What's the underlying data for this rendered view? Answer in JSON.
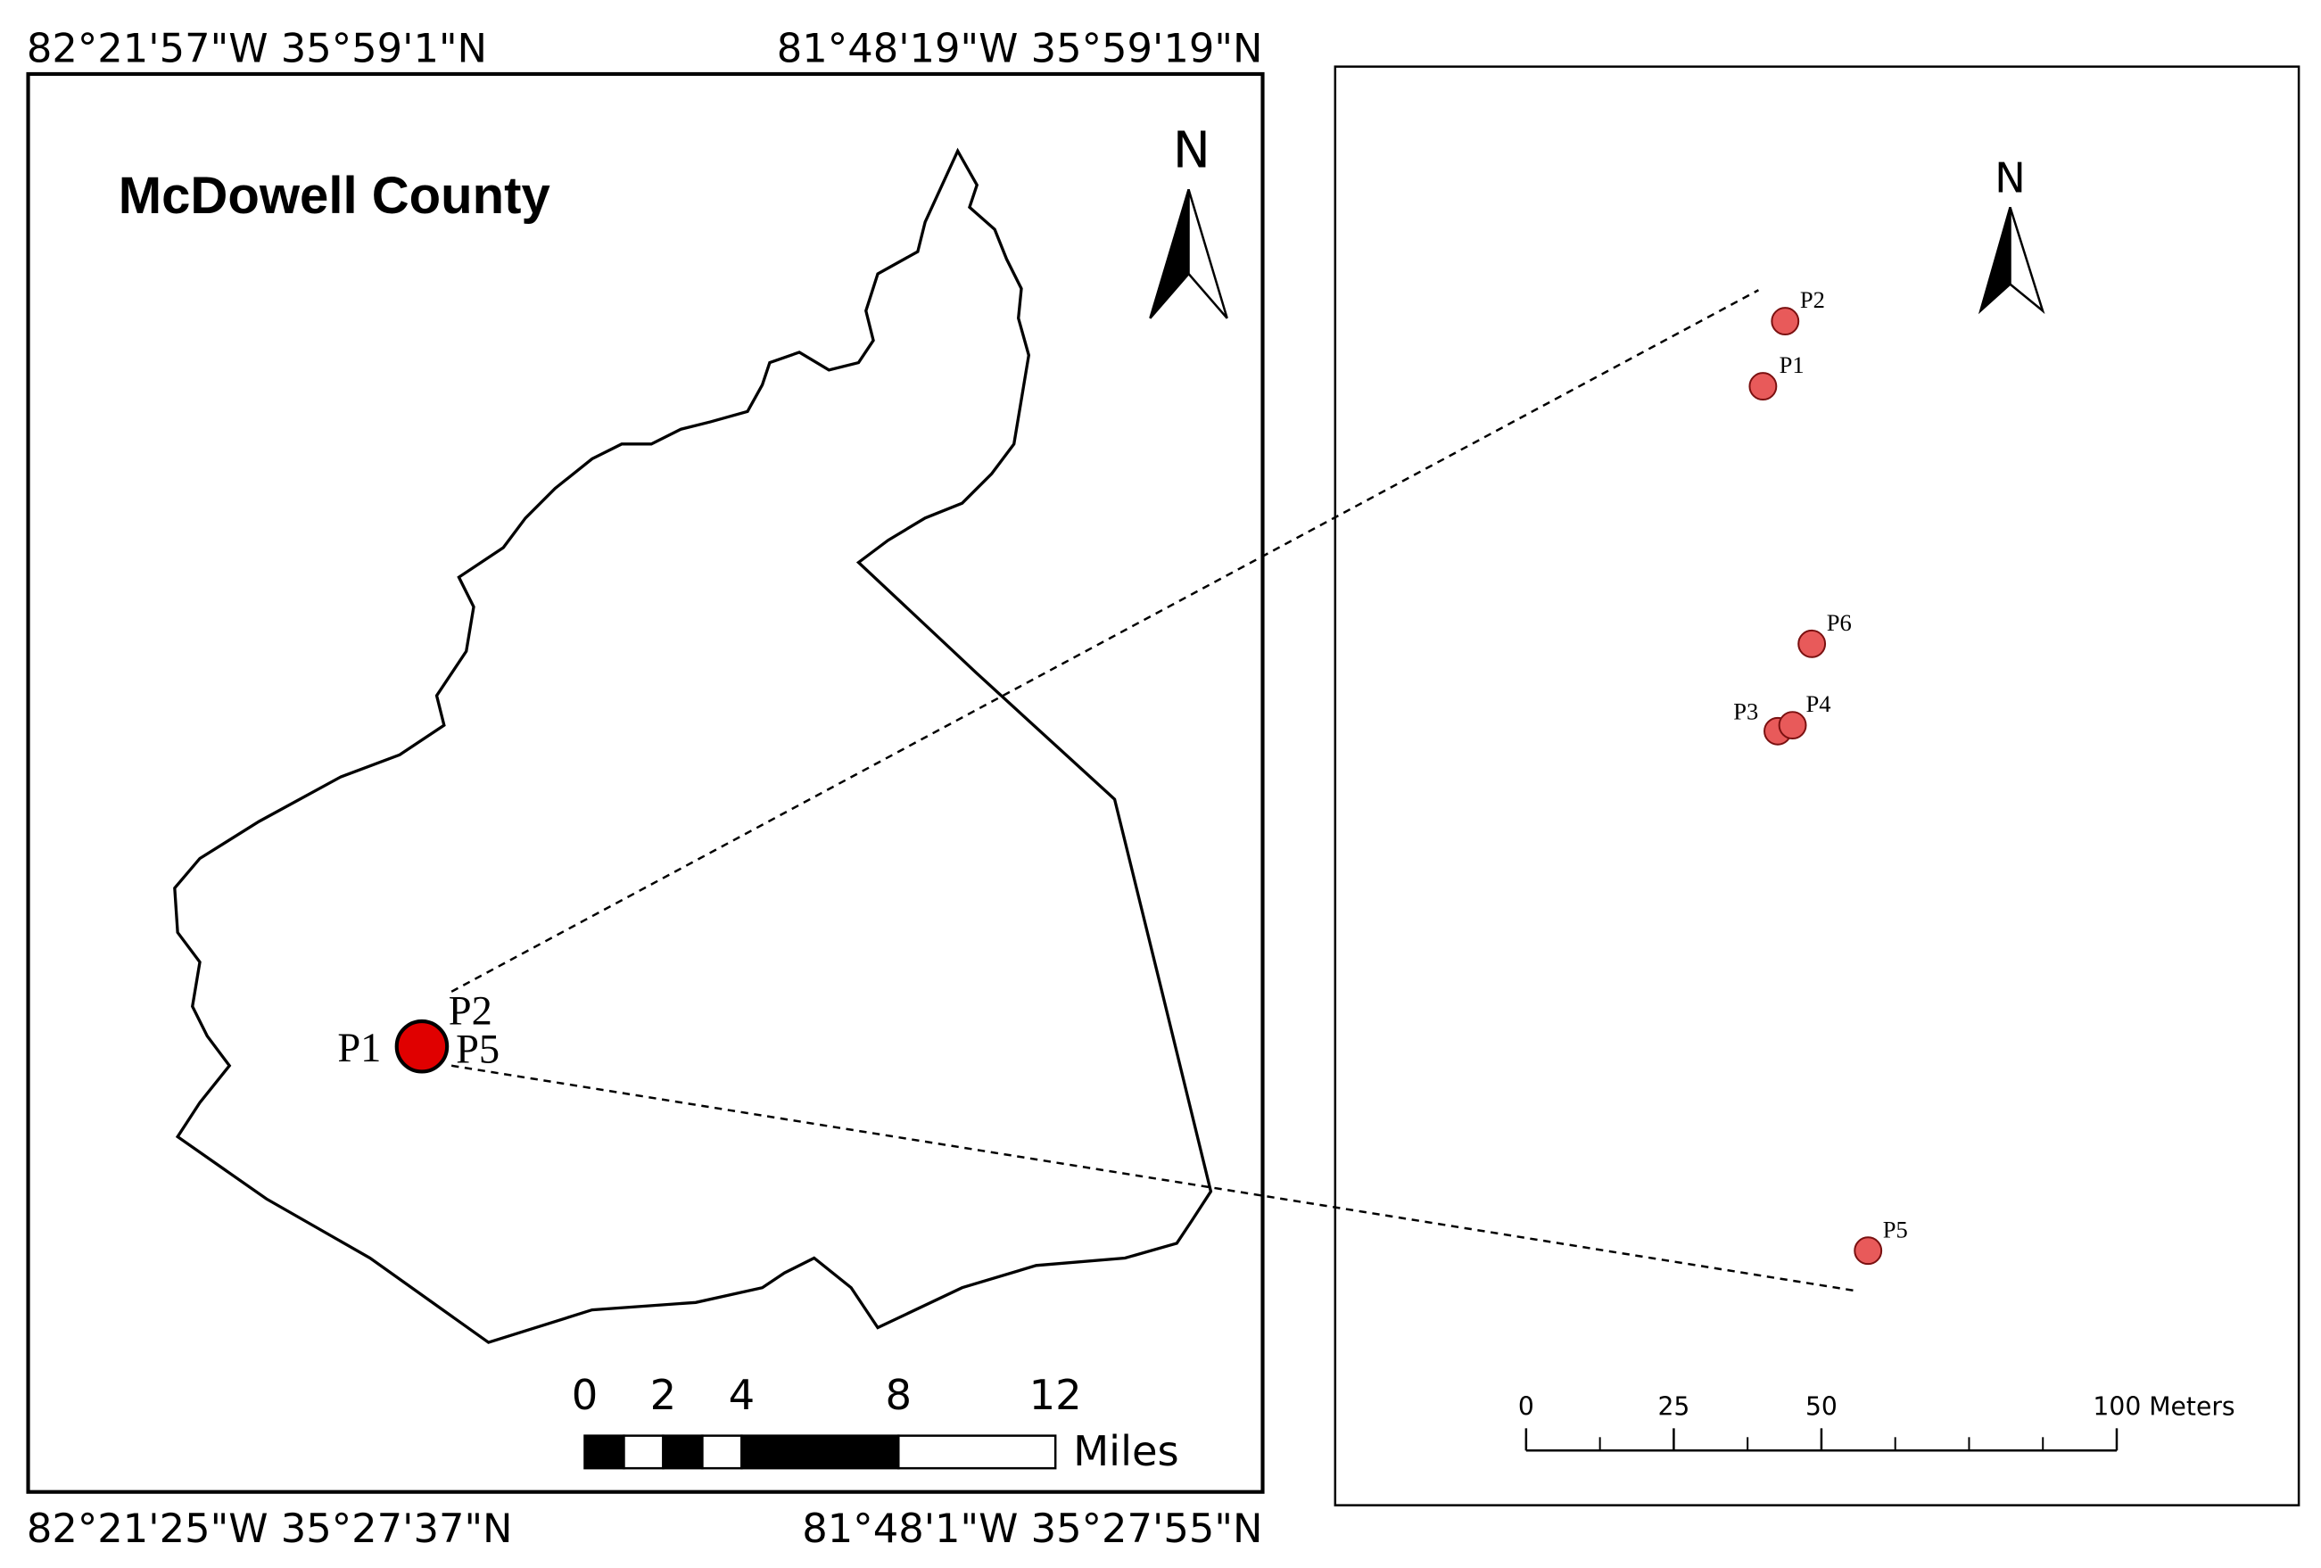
{
  "left_map": {
    "title": "McDowell County",
    "north": "N",
    "corners": {
      "top_left": "82°21'57\"W 35°59'1\"N",
      "top_right": "81°48'19\"W 35°59'19\"N",
      "bottom_left": "82°21'25\"W 35°27'37\"N",
      "bottom_right": "81°48'1\"W 35°27'55\"N"
    },
    "points": [
      "P1",
      "P2",
      "P5"
    ],
    "scale": {
      "ticks": [
        0,
        2,
        4,
        8,
        12
      ],
      "unit": "Miles"
    }
  },
  "right_map": {
    "north": "N",
    "points": [
      "P2",
      "P1",
      "P6",
      "P3",
      "P4",
      "P5"
    ],
    "scale": {
      "ticks": [
        0,
        25,
        50,
        {
          "value": 100,
          "label": "100 Meters"
        }
      ]
    }
  }
}
